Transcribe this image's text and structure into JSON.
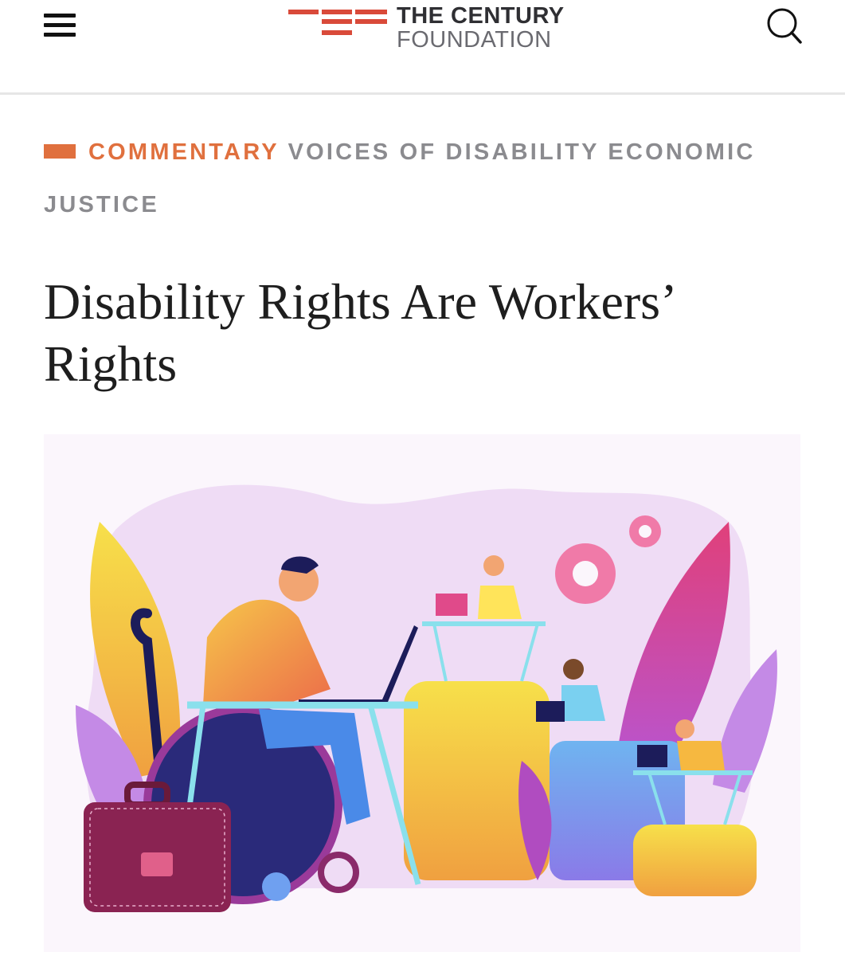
{
  "header": {
    "logo_line1": "THE CENTURY",
    "logo_line2": "FOUNDATION"
  },
  "article": {
    "category": "COMMENTARY",
    "series": "VOICES OF DISABILITY ECONOMIC JUSTICE",
    "title": "Disability Rights Are Workers’ Rights"
  }
}
